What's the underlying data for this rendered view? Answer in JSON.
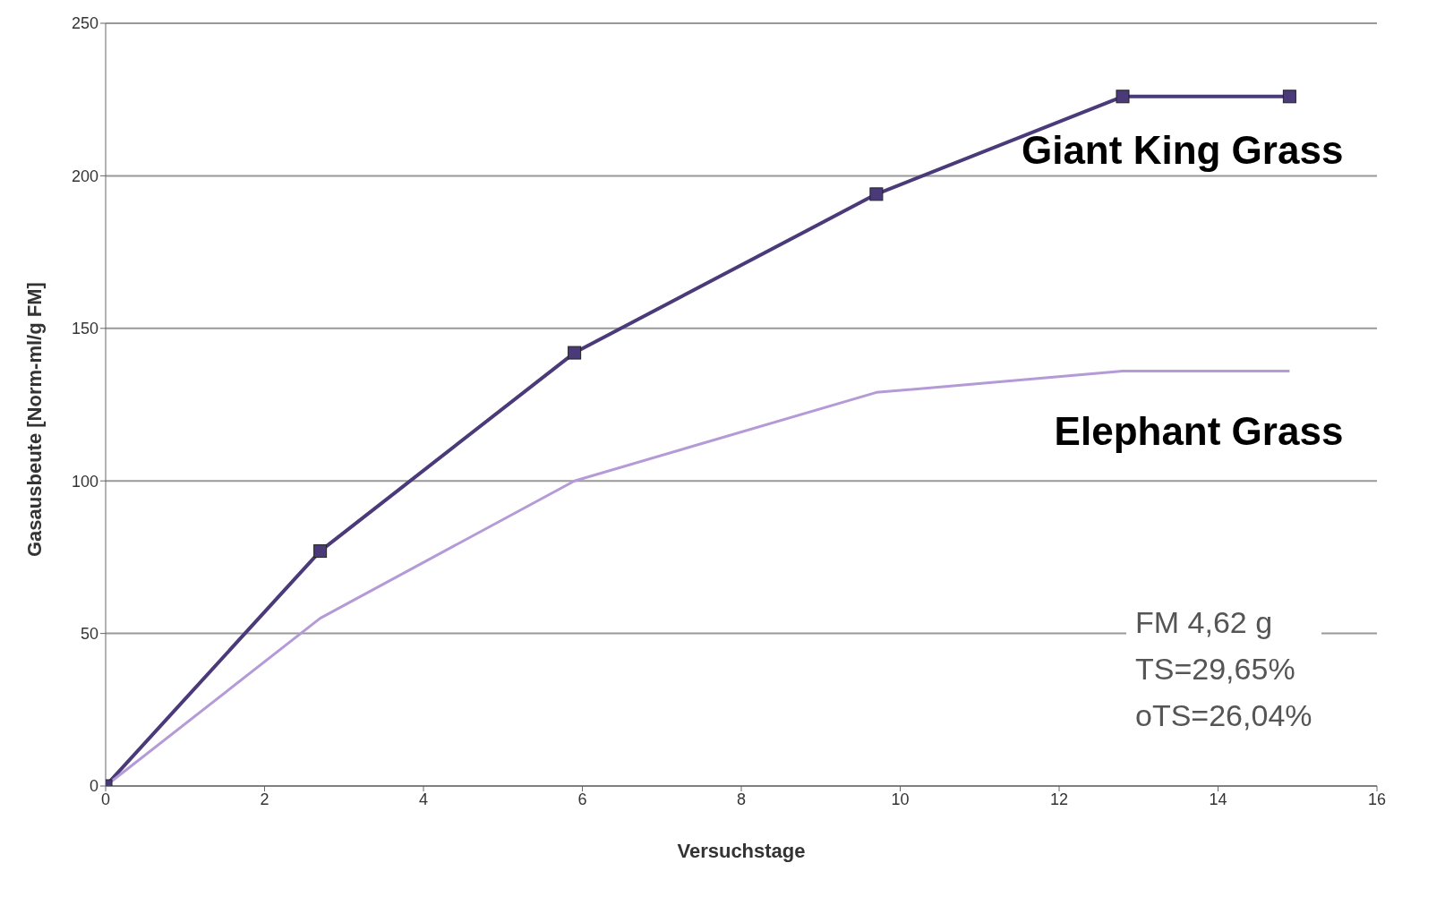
{
  "chart_data": {
    "type": "line",
    "xlabel": "Versuchstage",
    "ylabel": "Gasausbeute [Norm-ml/g FM]",
    "x": [
      0,
      2.7,
      5.9,
      9.7,
      12.8,
      14.9
    ],
    "series": [
      {
        "name": "Giant King Grass",
        "color": "#4b3a7a",
        "marker": "square",
        "values": [
          0,
          77,
          142,
          194,
          226,
          226
        ]
      },
      {
        "name": "Elephant Grass",
        "color": "#b49ad6",
        "marker": "none",
        "values": [
          0,
          55,
          100,
          129,
          136,
          136
        ]
      }
    ],
    "xlim": [
      0,
      16
    ],
    "xticks": [
      0,
      2,
      4,
      6,
      8,
      10,
      12,
      14,
      16
    ],
    "ylim": [
      0,
      250
    ],
    "yticks": [
      0,
      50,
      100,
      150,
      200,
      250
    ],
    "grid": "y",
    "annotations": [
      "FM 4,62 g",
      "TS=29,65%",
      "oTS=26,04%"
    ]
  }
}
